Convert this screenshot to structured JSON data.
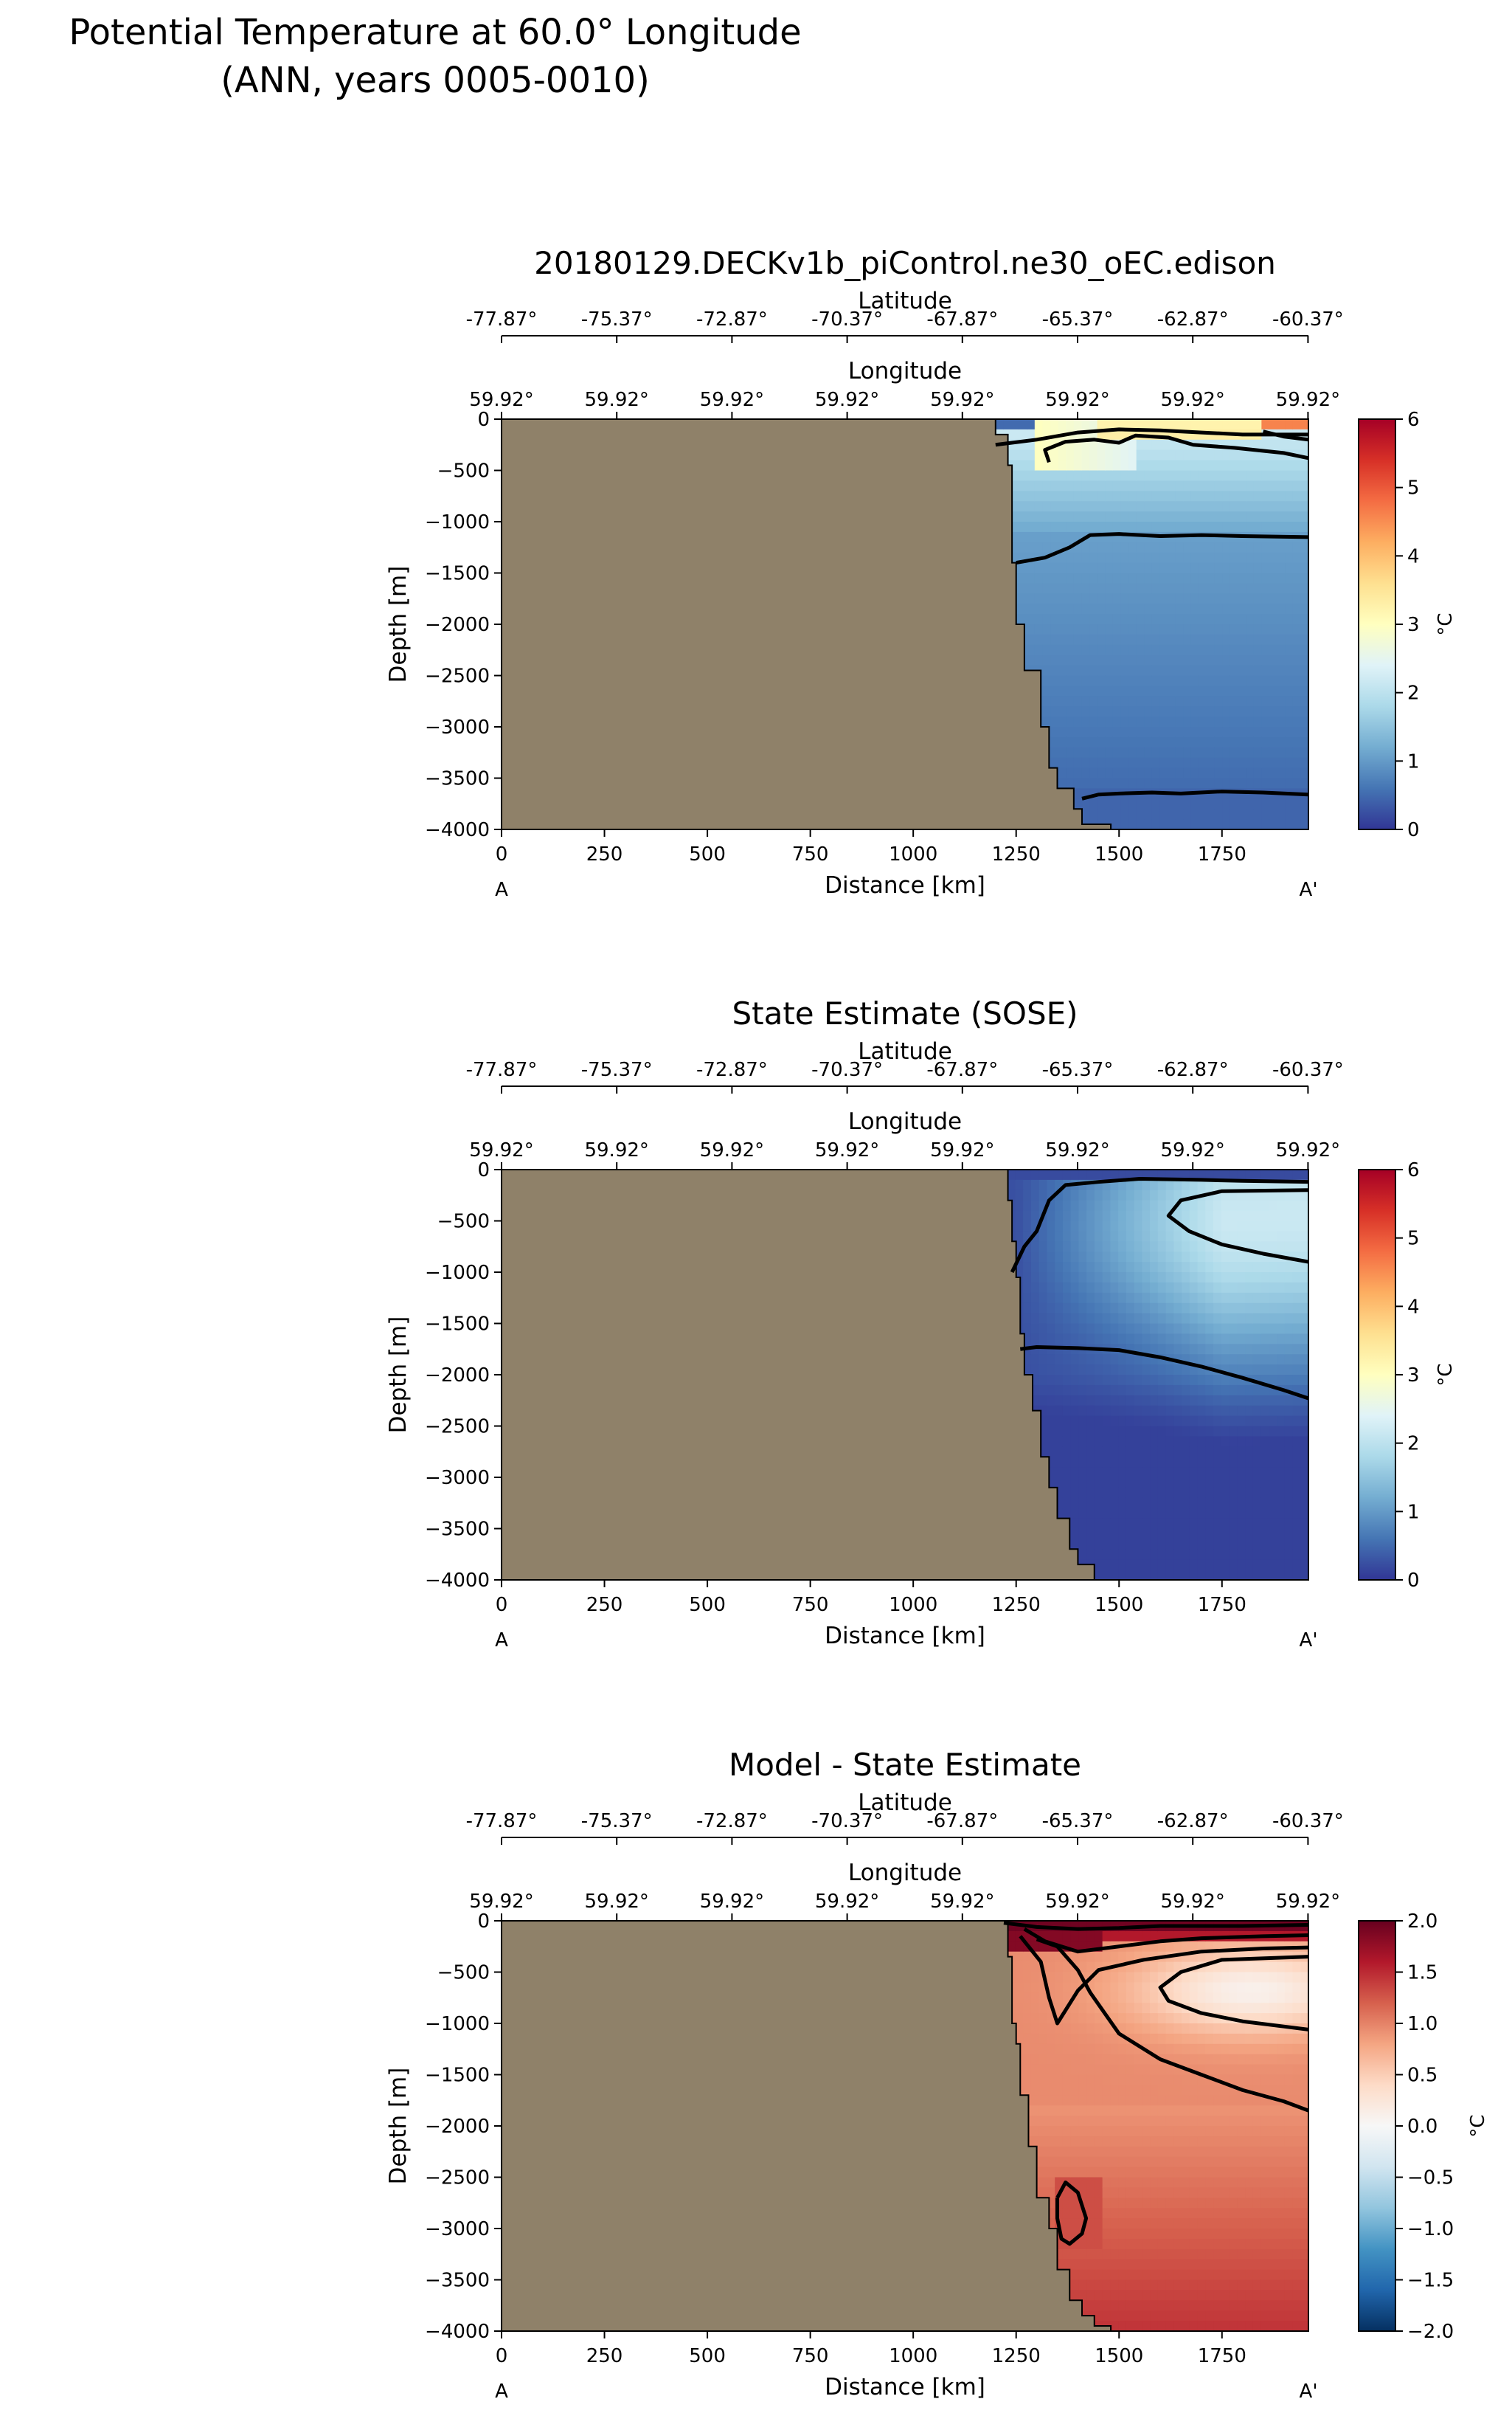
{
  "figure": {
    "title_line1": "Potential Temperature at 60.0° Longitude",
    "title_line2": "(ANN, years 0005-0010)"
  },
  "shared_axes": {
    "latitude_label": "Latitude",
    "latitude_ticks": [
      "-77.87°",
      "-75.37°",
      "-72.87°",
      "-70.37°",
      "-67.87°",
      "-65.37°",
      "-62.87°",
      "-60.37°"
    ],
    "longitude_label": "Longitude",
    "longitude_ticks": [
      "59.92°",
      "59.92°",
      "59.92°",
      "59.92°",
      "59.92°",
      "59.92°",
      "59.92°",
      "59.92°"
    ],
    "xlabel": "Distance [km]",
    "ylabel": "Depth [m]",
    "x_ticks": [
      0,
      250,
      500,
      750,
      1000,
      1250,
      1500,
      1750
    ],
    "xlim": [
      0,
      1960
    ],
    "y_ticks": [
      0,
      -500,
      -1000,
      -1500,
      -2000,
      -2500,
      -3000,
      -3500,
      -4000
    ],
    "ylim": [
      -4000,
      0
    ],
    "start_label": "A",
    "end_label": "A'",
    "land_color": "#8f8169"
  },
  "chart_data": [
    {
      "type": "heatmap",
      "title": "20180129.DECKv1b_piControl.ne30_oEC.edison",
      "colorbar": {
        "label": "°C",
        "min": 0,
        "max": 6,
        "ticks": [
          "0",
          "1",
          "2",
          "3",
          "4",
          "5",
          "6"
        ],
        "colormap": "RdYlBu_r"
      },
      "bathymetry": [
        [
          1200,
          -150
        ],
        [
          1230,
          -450
        ],
        [
          1240,
          -1400
        ],
        [
          1250,
          -2000
        ],
        [
          1270,
          -2450
        ],
        [
          1310,
          -3000
        ],
        [
          1330,
          -3400
        ],
        [
          1350,
          -3600
        ],
        [
          1390,
          -3800
        ],
        [
          1410,
          -3950
        ],
        [
          1480,
          -4000
        ]
      ],
      "contours": [
        {
          "level": 0.5,
          "points": [
            [
              1410,
              -3700
            ],
            [
              1450,
              -3660
            ],
            [
              1500,
              -3650
            ],
            [
              1580,
              -3640
            ],
            [
              1650,
              -3650
            ],
            [
              1750,
              -3630
            ],
            [
              1850,
              -3640
            ],
            [
              1960,
              -3660
            ]
          ]
        },
        {
          "level": 1.0,
          "points": [
            [
              1250,
              -1400
            ],
            [
              1320,
              -1350
            ],
            [
              1380,
              -1250
            ],
            [
              1430,
              -1130
            ],
            [
              1500,
              -1120
            ],
            [
              1600,
              -1140
            ],
            [
              1700,
              -1130
            ],
            [
              1800,
              -1140
            ],
            [
              1960,
              -1150
            ]
          ]
        },
        {
          "level": 2.0,
          "points": [
            [
              1200,
              -250
            ],
            [
              1300,
              -200
            ],
            [
              1400,
              -130
            ],
            [
              1500,
              -100
            ],
            [
              1600,
              -110
            ],
            [
              1700,
              -130
            ],
            [
              1800,
              -150
            ],
            [
              1960,
              -150
            ]
          ]
        },
        {
          "level": 2.5,
          "points": [
            [
              1330,
              -420
            ],
            [
              1320,
              -300
            ],
            [
              1370,
              -220
            ],
            [
              1440,
              -200
            ],
            [
              1500,
              -230
            ],
            [
              1540,
              -160
            ],
            [
              1620,
              -180
            ],
            [
              1680,
              -250
            ],
            [
              1780,
              -280
            ],
            [
              1900,
              -330
            ],
            [
              1960,
              -380
            ]
          ]
        },
        {
          "level": 3.0,
          "points": [
            [
              1850,
              -120
            ],
            [
              1900,
              -170
            ],
            [
              1960,
              -200
            ]
          ]
        }
      ]
    },
    {
      "type": "heatmap",
      "title": "State Estimate (SOSE)",
      "colorbar": {
        "label": "°C",
        "min": 0,
        "max": 6,
        "ticks": [
          "0",
          "1",
          "2",
          "3",
          "4",
          "5",
          "6"
        ],
        "colormap": "RdYlBu_r"
      },
      "bathymetry": [
        [
          1190,
          0
        ],
        [
          1230,
          -300
        ],
        [
          1240,
          -700
        ],
        [
          1250,
          -1050
        ],
        [
          1260,
          -1600
        ],
        [
          1270,
          -2000
        ],
        [
          1290,
          -2350
        ],
        [
          1310,
          -2800
        ],
        [
          1330,
          -3100
        ],
        [
          1350,
          -3400
        ],
        [
          1380,
          -3700
        ],
        [
          1400,
          -3850
        ],
        [
          1440,
          -4000
        ]
      ],
      "contours": [
        {
          "level": 0.5,
          "points": [
            [
              1260,
              -1750
            ],
            [
              1300,
              -1730
            ],
            [
              1400,
              -1740
            ],
            [
              1500,
              -1760
            ],
            [
              1600,
              -1830
            ],
            [
              1700,
              -1920
            ],
            [
              1800,
              -2030
            ],
            [
              1900,
              -2150
            ],
            [
              1960,
              -2230
            ]
          ]
        },
        {
          "level": 1.5,
          "points": [
            [
              1240,
              -1000
            ],
            [
              1270,
              -750
            ],
            [
              1300,
              -600
            ],
            [
              1330,
              -300
            ],
            [
              1370,
              -150
            ],
            [
              1450,
              -120
            ],
            [
              1550,
              -90
            ],
            [
              1700,
              -100
            ],
            [
              1800,
              -110
            ],
            [
              1960,
              -120
            ]
          ]
        },
        {
          "level": 2.0,
          "points": [
            [
              1960,
              -200
            ],
            [
              1750,
              -210
            ],
            [
              1650,
              -300
            ],
            [
              1620,
              -450
            ],
            [
              1670,
              -600
            ],
            [
              1750,
              -730
            ],
            [
              1850,
              -820
            ],
            [
              1960,
              -900
            ]
          ]
        }
      ]
    },
    {
      "type": "heatmap",
      "title": "Model - State Estimate",
      "colorbar": {
        "label": "°C",
        "min": -2.0,
        "max": 2.0,
        "ticks": [
          "−2.0",
          "−1.5",
          "−1.0",
          "−0.5",
          "0.0",
          "0.5",
          "1.0",
          "1.5",
          "2.0"
        ],
        "colormap": "RdBu_r"
      },
      "bathymetry": [
        [
          1190,
          0
        ],
        [
          1230,
          -350
        ],
        [
          1240,
          -1000
        ],
        [
          1250,
          -1200
        ],
        [
          1260,
          -1700
        ],
        [
          1280,
          -2200
        ],
        [
          1300,
          -2700
        ],
        [
          1330,
          -3000
        ],
        [
          1350,
          -3400
        ],
        [
          1380,
          -3700
        ],
        [
          1410,
          -3850
        ],
        [
          1440,
          -3950
        ],
        [
          1480,
          -4000
        ]
      ],
      "contours": [
        {
          "level": 0.5,
          "points": [
            [
              1960,
              -350
            ],
            [
              1750,
              -380
            ],
            [
              1650,
              -500
            ],
            [
              1600,
              -650
            ],
            [
              1620,
              -780
            ],
            [
              1700,
              -900
            ],
            [
              1800,
              -980
            ],
            [
              1900,
              -1030
            ],
            [
              1960,
              -1060
            ]
          ]
        },
        {
          "level": 0.75,
          "points": [
            [
              1300,
              -180
            ],
            [
              1350,
              -250
            ],
            [
              1400,
              -480
            ],
            [
              1430,
              -700
            ],
            [
              1500,
              -1100
            ],
            [
              1600,
              -1350
            ],
            [
              1700,
              -1500
            ],
            [
              1800,
              -1650
            ],
            [
              1900,
              -1760
            ],
            [
              1960,
              -1850
            ]
          ]
        },
        {
          "level": 1.25,
          "points": [
            [
              1350,
              -2700
            ],
            [
              1370,
              -2550
            ],
            [
              1400,
              -2650
            ],
            [
              1420,
              -2900
            ],
            [
              1410,
              -3050
            ],
            [
              1380,
              -3150
            ],
            [
              1360,
              -3100
            ],
            [
              1350,
              -2900
            ],
            [
              1350,
              -2700
            ]
          ]
        },
        {
          "level": 1.5,
          "points": [
            [
              1260,
              -150
            ],
            [
              1310,
              -400
            ],
            [
              1330,
              -750
            ],
            [
              1350,
              -1000
            ],
            [
              1400,
              -680
            ],
            [
              1450,
              -480
            ],
            [
              1560,
              -380
            ],
            [
              1700,
              -300
            ],
            [
              1850,
              -270
            ],
            [
              1960,
              -260
            ]
          ]
        },
        {
          "level": 1.75,
          "points": [
            [
              1270,
              -80
            ],
            [
              1320,
              -200
            ],
            [
              1400,
              -300
            ],
            [
              1500,
              -250
            ],
            [
              1600,
              -200
            ],
            [
              1700,
              -170
            ],
            [
              1850,
              -150
            ],
            [
              1960,
              -140
            ]
          ]
        },
        {
          "level": 1.9,
          "points": [
            [
              1220,
              -20
            ],
            [
              1300,
              -60
            ],
            [
              1400,
              -80
            ],
            [
              1500,
              -70
            ],
            [
              1600,
              -50
            ],
            [
              1800,
              -50
            ],
            [
              1960,
              -40
            ]
          ]
        }
      ]
    }
  ]
}
